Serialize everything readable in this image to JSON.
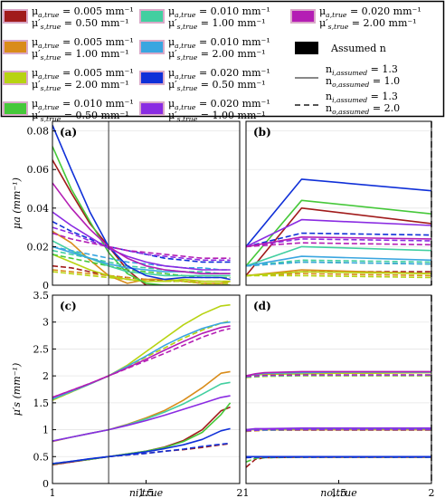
{
  "chart_data": {
    "type": "line",
    "legend": {
      "placement": "top",
      "entries": [
        {
          "name": "μa,true = 0.005 mm⁻¹ / μ′s,true = 0.50 mm⁻¹",
          "l1": "μ",
          "s1": "a,true",
          "v1": " = 0.005 mm⁻¹",
          "l2": "μ′",
          "s2": "s,true",
          "v2": " = 0.50 mm⁻¹",
          "color": "#a11b1b",
          "border": "#d9a9c8"
        },
        {
          "name": "μa,true = 0.005 mm⁻¹ / μ′s,true = 1.00 mm⁻¹",
          "l1": "μ",
          "s1": "a,true",
          "v1": " = 0.005 mm⁻¹",
          "l2": "μ′",
          "s2": "s,true",
          "v2": " = 1.00 mm⁻¹",
          "color": "#d98c1a",
          "border": "#d9a9c8"
        },
        {
          "name": "μa,true = 0.005 mm⁻¹ / μ′s,true = 2.00 mm⁻¹",
          "l1": "μ",
          "s1": "a,true",
          "v1": " = 0.005 mm⁻¹",
          "l2": "μ′",
          "s2": "s,true",
          "v2": " = 2.00 mm⁻¹",
          "color": "#b7d312",
          "border": "#d9a9c8"
        },
        {
          "name": "μa,true = 0.010 mm⁻¹ / μ′s,true = 0.50 mm⁻¹",
          "l1": "μ",
          "s1": "a,true",
          "v1": " = 0.010 mm⁻¹",
          "l2": "μ′",
          "s2": "s,true",
          "v2": " = 0.50 mm⁻¹",
          "color": "#46c83a",
          "border": "#d9a9c8"
        },
        {
          "name": "μa,true = 0.010 mm⁻¹ / μ′s,true = 1.00 mm⁻¹",
          "l1": "μ",
          "s1": "a,true",
          "v1": " = 0.010 mm⁻¹",
          "l2": "μ′",
          "s2": "s,true",
          "v2": " = 1.00 mm⁻¹",
          "color": "#42cfa0",
          "border": "#d9a9c8"
        },
        {
          "name": "μa,true = 0.010 mm⁻¹ / μ′s,true = 2.00 mm⁻¹",
          "l1": "μ",
          "s1": "a,true",
          "v1": " = 0.010 mm⁻¹",
          "l2": "μ′",
          "s2": "s,true",
          "v2": " = 2.00 mm⁻¹",
          "color": "#3aa6e0",
          "border": "#d9a9c8"
        },
        {
          "name": "μa,true = 0.020 mm⁻¹ / μ′s,true = 0.50 mm⁻¹",
          "l1": "μ",
          "s1": "a,true",
          "v1": " = 0.020 mm⁻¹",
          "l2": "μ′",
          "s2": "s,true",
          "v2": " = 0.50 mm⁻¹",
          "color": "#1030d8",
          "border": "#d9a9c8"
        },
        {
          "name": "μa,true = 0.020 mm⁻¹ / μ′s,true = 1.00 mm⁻¹",
          "l1": "μ",
          "s1": "a,true",
          "v1": " = 0.020 mm⁻¹",
          "l2": "μ′",
          "s2": "s,true",
          "v2": " = 1.00 mm⁻¹",
          "color": "#8a2be2",
          "border": "#d9a9c8"
        },
        {
          "name": "μa,true = 0.020 mm⁻¹ / μ′s,true = 2.00 mm⁻¹",
          "l1": "μ",
          "s1": "a,true",
          "v1": " = 0.020 mm⁻¹",
          "l2": "μ′",
          "s2": "s,true",
          "v2": " = 2.00 mm⁻¹",
          "color": "#b41eb4",
          "border": "#d9a9c8"
        }
      ],
      "assumed_label": "Assumed n",
      "solid": {
        "l1": "n",
        "s1": "i,assumed",
        "v1": " = 1.3",
        "l2": "n",
        "s2": "o,assumed",
        "v2": " = 1.0"
      },
      "dashed": {
        "l1": "n",
        "s1": "i,assumed",
        "v1": " = 1.3",
        "l2": "n",
        "s2": "o,assumed",
        "v2": " = 2.0"
      }
    },
    "panels": {
      "a": {
        "label": "(a)",
        "xlim": [
          1,
          2
        ],
        "ylim": [
          0,
          0.085
        ],
        "yticks": [
          "0",
          "0.02",
          "0.04",
          "0.06",
          "0.08"
        ],
        "ytick_values": [
          0,
          0.02,
          0.04,
          0.06,
          0.08
        ],
        "ylabel": "μa (mm⁻¹)",
        "assumed_x": 1.3
      },
      "b": {
        "label": "(b)",
        "xlim": [
          1,
          2
        ],
        "ylim": [
          0,
          0.085
        ],
        "assumed_x": 2
      },
      "c": {
        "label": "(c)",
        "xlim": [
          1,
          2
        ],
        "ylim": [
          0,
          3.5
        ],
        "yticks": [
          "0",
          "0.5",
          "1",
          "1.5",
          "2",
          "2.5",
          "3",
          "3.5"
        ],
        "ytick_values": [
          0,
          0.5,
          1,
          1.5,
          2,
          2.5,
          3,
          3.5
        ],
        "xticks": [
          "1",
          "1.5",
          "2"
        ],
        "xtick_values": [
          1,
          1.5,
          2
        ],
        "ylabel": "μ′s (mm⁻¹)",
        "xlabel": "ni,true",
        "assumed_x": 1.3
      },
      "d": {
        "label": "(d)",
        "xlim": [
          1,
          2
        ],
        "ylim": [
          0,
          3.5
        ],
        "xticks": [
          "1",
          "1.5",
          "2"
        ],
        "xtick_values": [
          1,
          1.5,
          2
        ],
        "xlabel": "no,true",
        "assumed_x": 2
      }
    },
    "x": [
      1.0,
      1.1,
      1.2,
      1.3,
      1.4,
      1.5,
      1.6,
      1.7,
      1.8,
      1.9,
      1.95
    ],
    "series_a": [
      {
        "name": "0.005/0.50",
        "solid": [
          0.065,
          0.048,
          0.032,
          0.02,
          0.008,
          0,
          0,
          0,
          0,
          0,
          0
        ],
        "dashed": [
          0.01,
          0.009,
          0.007,
          0.005,
          0.004,
          0.003,
          0.002,
          0.002,
          0.001,
          0.001,
          0.001
        ]
      },
      {
        "name": "0.005/1.00",
        "solid": [
          0.028,
          0.022,
          0.013,
          0.005,
          0.001,
          0.003,
          0.003,
          0.002,
          0.001,
          0.001,
          0.002
        ],
        "dashed": [
          0.008,
          0.007,
          0.006,
          0.005,
          0.004,
          0.003,
          0.003,
          0.002,
          0.002,
          0.002,
          0.002
        ]
      },
      {
        "name": "0.005/2.00",
        "solid": [
          0.016,
          0.012,
          0.008,
          0.005,
          0.003,
          0.002,
          0.002,
          0.003,
          0.002,
          0.002,
          0.002
        ],
        "dashed": [
          0.007,
          0.006,
          0.005,
          0.004,
          0.003,
          0.002,
          0.002,
          0.002,
          0.001,
          0.001,
          0.001
        ]
      },
      {
        "name": "0.010/0.50",
        "solid": [
          0.072,
          0.05,
          0.033,
          0.017,
          0.006,
          0.001,
          0,
          0,
          0,
          0,
          0
        ],
        "dashed": [
          0.016,
          0.014,
          0.012,
          0.01,
          0.008,
          0.007,
          0.006,
          0.005,
          0.004,
          0.004,
          0.004
        ]
      },
      {
        "name": "0.010/1.00",
        "solid": [
          0.023,
          0.018,
          0.014,
          0.01,
          0.007,
          0.006,
          0.005,
          0.005,
          0.005,
          0.005,
          0.005
        ],
        "dashed": [
          0.018,
          0.016,
          0.014,
          0.012,
          0.01,
          0.009,
          0.008,
          0.007,
          0.007,
          0.006,
          0.006
        ]
      },
      {
        "name": "0.010/2.00",
        "solid": [
          0.02,
          0.017,
          0.014,
          0.011,
          0.009,
          0.008,
          0.007,
          0.007,
          0.006,
          0.006,
          0.006
        ],
        "dashed": [
          0.02,
          0.018,
          0.016,
          0.014,
          0.012,
          0.011,
          0.01,
          0.009,
          0.009,
          0.008,
          0.008
        ]
      },
      {
        "name": "0.020/0.50",
        "solid": [
          0.083,
          0.06,
          0.038,
          0.02,
          0.01,
          0.005,
          0.003,
          0.004,
          0.004,
          0.004,
          0.003
        ],
        "dashed": [
          0.033,
          0.028,
          0.024,
          0.02,
          0.018,
          0.016,
          0.014,
          0.013,
          0.012,
          0.012,
          0.012
        ]
      },
      {
        "name": "0.020/1.00",
        "solid": [
          0.038,
          0.031,
          0.025,
          0.019,
          0.015,
          0.012,
          0.01,
          0.009,
          0.008,
          0.008,
          0.008
        ],
        "dashed": [
          0.03,
          0.027,
          0.023,
          0.02,
          0.018,
          0.016,
          0.015,
          0.014,
          0.013,
          0.013,
          0.013
        ]
      },
      {
        "name": "0.020/2.00",
        "solid": [
          0.053,
          0.04,
          0.029,
          0.02,
          0.014,
          0.01,
          0.008,
          0.007,
          0.006,
          0.006,
          0.006
        ],
        "dashed": [
          0.027,
          0.024,
          0.022,
          0.02,
          0.018,
          0.017,
          0.016,
          0.015,
          0.014,
          0.014,
          0.014
        ]
      }
    ],
    "series_b_x": [
      1.0,
      1.3,
      2.0
    ],
    "series_b": [
      {
        "name": "0.005/0.50",
        "solid": [
          0.005,
          0.04,
          0.032
        ],
        "dashed": [
          0.005,
          0.007,
          0.007
        ]
      },
      {
        "name": "0.005/1.00",
        "solid": [
          0.005,
          0.008,
          0.006
        ],
        "dashed": [
          0.005,
          0.006,
          0.005
        ]
      },
      {
        "name": "0.005/2.00",
        "solid": [
          0.005,
          0.007,
          0.006
        ],
        "dashed": [
          0.005,
          0.005,
          0.004
        ]
      },
      {
        "name": "0.010/0.50",
        "solid": [
          0.01,
          0.044,
          0.037
        ],
        "dashed": [
          0.01,
          0.012,
          0.011
        ]
      },
      {
        "name": "0.010/1.00",
        "solid": [
          0.01,
          0.02,
          0.018
        ],
        "dashed": [
          0.01,
          0.013,
          0.012
        ]
      },
      {
        "name": "0.010/2.00",
        "solid": [
          0.01,
          0.015,
          0.013
        ],
        "dashed": [
          0.01,
          0.012,
          0.011
        ]
      },
      {
        "name": "0.020/0.50",
        "solid": [
          0.02,
          0.055,
          0.049
        ],
        "dashed": [
          0.02,
          0.027,
          0.026
        ]
      },
      {
        "name": "0.020/1.00",
        "solid": [
          0.02,
          0.034,
          0.031
        ],
        "dashed": [
          0.02,
          0.024,
          0.023
        ]
      },
      {
        "name": "0.020/2.00",
        "solid": [
          0.02,
          0.025,
          0.024
        ],
        "dashed": [
          0.02,
          0.022,
          0.021
        ]
      }
    ],
    "series_c": [
      {
        "name": "0.005/0.50",
        "solid": [
          0.35,
          0.4,
          0.45,
          0.5,
          0.55,
          0.6,
          0.68,
          0.8,
          1.0,
          1.35,
          1.42
        ],
        "dashed": [
          0.35,
          0.4,
          0.45,
          0.5,
          0.53,
          0.56,
          0.6,
          0.63,
          0.67,
          0.72,
          0.74
        ]
      },
      {
        "name": "0.005/1.00",
        "solid": [
          0.78,
          0.86,
          0.93,
          1.0,
          1.1,
          1.22,
          1.36,
          1.55,
          1.78,
          2.05,
          2.08
        ]
      },
      {
        "name": "0.005/2.00",
        "solid": [
          1.55,
          1.7,
          1.85,
          2.0,
          2.2,
          2.45,
          2.7,
          2.95,
          3.15,
          3.3,
          3.32
        ],
        "dashed": [
          1.55,
          1.7,
          1.85,
          2.0,
          2.17,
          2.35,
          2.52,
          2.7,
          2.85,
          2.98,
          3.02
        ]
      },
      {
        "name": "0.010/0.50",
        "solid": [
          0.36,
          0.41,
          0.45,
          0.5,
          0.55,
          0.6,
          0.67,
          0.78,
          0.95,
          1.28,
          1.5
        ]
      },
      {
        "name": "0.010/1.00",
        "solid": [
          0.79,
          0.86,
          0.93,
          1.0,
          1.09,
          1.2,
          1.33,
          1.48,
          1.66,
          1.85,
          1.88
        ]
      },
      {
        "name": "0.010/2.00",
        "solid": [
          1.57,
          1.71,
          1.85,
          2.0,
          2.18,
          2.37,
          2.57,
          2.74,
          2.88,
          2.98,
          3.0
        ]
      },
      {
        "name": "0.020/0.50",
        "solid": [
          0.37,
          0.41,
          0.46,
          0.5,
          0.54,
          0.59,
          0.65,
          0.72,
          0.82,
          0.98,
          1.02
        ],
        "dashed": [
          0.37,
          0.41,
          0.46,
          0.5,
          0.53,
          0.56,
          0.6,
          0.64,
          0.69,
          0.73,
          0.75
        ]
      },
      {
        "name": "0.020/1.00",
        "solid": [
          0.79,
          0.86,
          0.93,
          1.0,
          1.08,
          1.17,
          1.27,
          1.38,
          1.49,
          1.6,
          1.63
        ]
      },
      {
        "name": "0.020/2.00",
        "solid": [
          1.6,
          1.73,
          1.86,
          2.0,
          2.15,
          2.31,
          2.48,
          2.64,
          2.79,
          2.9,
          2.93
        ],
        "dashed": [
          1.6,
          1.73,
          1.86,
          2.0,
          2.14,
          2.28,
          2.42,
          2.57,
          2.72,
          2.84,
          2.88
        ]
      }
    ],
    "series_d_x": [
      1.0,
      1.05,
      1.1,
      1.3,
      1.5,
      1.7,
      2.0
    ],
    "series_d": [
      {
        "name": "0.005/0.50",
        "solid": [
          0.5,
          0.5,
          0.5,
          0.5,
          0.5,
          0.5,
          0.5
        ],
        "dashed": [
          0.3,
          0.45,
          0.48,
          0.49,
          0.49,
          0.49,
          0.49
        ]
      },
      {
        "name": "0.005/1.00",
        "solid": [
          1.0,
          1.0,
          1.0,
          1.0,
          1.0,
          1.0,
          1.0
        ],
        "dashed": [
          0.97,
          0.98,
          0.99,
          0.99,
          0.99,
          0.99,
          0.99
        ]
      },
      {
        "name": "0.005/2.00",
        "solid": [
          2.0,
          2.02,
          2.03,
          2.04,
          2.05,
          2.05,
          2.06
        ],
        "dashed": [
          1.97,
          1.98,
          1.99,
          2.0,
          2.0,
          2.0,
          2.0
        ]
      },
      {
        "name": "0.010/0.50",
        "solid": [
          0.5,
          0.5,
          0.5,
          0.5,
          0.5,
          0.5,
          0.5
        ],
        "dashed": [
          0.4,
          0.47,
          0.48,
          0.49,
          0.49,
          0.49,
          0.49
        ]
      },
      {
        "name": "0.010/1.00",
        "solid": [
          1.0,
          1.01,
          1.01,
          1.02,
          1.02,
          1.02,
          1.02
        ],
        "dashed": [
          0.98,
          0.99,
          0.99,
          1.0,
          1.0,
          1.0,
          1.0
        ]
      },
      {
        "name": "0.010/2.00",
        "solid": [
          2.0,
          2.03,
          2.05,
          2.06,
          2.07,
          2.07,
          2.07
        ],
        "dashed": [
          1.98,
          1.99,
          2.0,
          2.01,
          2.01,
          2.01,
          2.01
        ]
      },
      {
        "name": "0.020/0.50",
        "solid": [
          0.5,
          0.5,
          0.5,
          0.5,
          0.5,
          0.5,
          0.5
        ],
        "dashed": [
          0.48,
          0.49,
          0.49,
          0.49,
          0.49,
          0.49,
          0.49
        ]
      },
      {
        "name": "0.020/1.00",
        "solid": [
          1.0,
          1.02,
          1.02,
          1.03,
          1.03,
          1.03,
          1.03
        ],
        "dashed": [
          0.98,
          0.99,
          1.0,
          1.0,
          1.0,
          1.0,
          1.0
        ]
      },
      {
        "name": "0.020/2.00",
        "solid": [
          2.0,
          2.04,
          2.06,
          2.08,
          2.08,
          2.08,
          2.08
        ],
        "dashed": [
          1.99,
          2.0,
          2.01,
          2.02,
          2.02,
          2.02,
          2.02
        ]
      }
    ]
  }
}
